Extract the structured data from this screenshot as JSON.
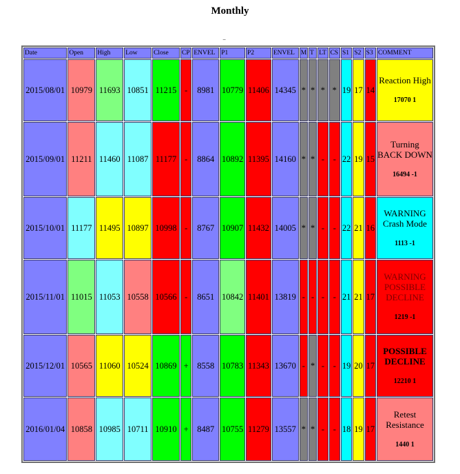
{
  "page": {
    "title": "Monthly"
  },
  "table": {
    "headers": [
      "Date",
      "Open",
      "High",
      "Low",
      "Close",
      "CP",
      "ENVEL",
      "P1",
      "P2",
      "ENVEL",
      "M",
      "T",
      "LT",
      "CS",
      "S1",
      "S2",
      "S3",
      "COMMENT"
    ],
    "rows": [
      {
        "cells": [
          "2015/08/01",
          "10979",
          "11693",
          "10851",
          "11215",
          "-",
          "8981",
          "10779",
          "11406",
          "14345",
          "*",
          "*",
          "*",
          "*",
          "19",
          "17",
          "14"
        ],
        "colors": [
          "#8080ff",
          "#ff8080",
          "#80ff80",
          "#80ffff",
          "#00ff00",
          "#ff0000",
          "#8080ff",
          "#00ff00",
          "#ff0000",
          "#8080ff",
          "#808080",
          "#808080",
          "#808080",
          "#808080",
          "#00ffff",
          "#ffff00",
          "#ff0000"
        ],
        "comment": {
          "text": "Reaction High",
          "sig": "17070 1",
          "bg": "#ffff00",
          "fg": "#000000",
          "bold": false
        }
      },
      {
        "cells": [
          "2015/09/01",
          "11211",
          "11460",
          "11087",
          "11177",
          "-",
          "8864",
          "10892",
          "11395",
          "14160",
          "*",
          "*",
          "-",
          "-",
          "22",
          "19",
          "15"
        ],
        "colors": [
          "#8080ff",
          "#ff8080",
          "#80ffff",
          "#80ffff",
          "#ff0000",
          "#ff0000",
          "#8080ff",
          "#00ff00",
          "#ff0000",
          "#8080ff",
          "#808080",
          "#808080",
          "#ff0000",
          "#ff0000",
          "#00ffff",
          "#ffff00",
          "#ff0000"
        ],
        "comment": {
          "text": "Turning BACK DOWN",
          "sig": "16494 -1",
          "bg": "#ff8080",
          "fg": "#000000",
          "bold": false
        }
      },
      {
        "cells": [
          "2015/10/01",
          "11177",
          "11495",
          "10897",
          "10998",
          "-",
          "8767",
          "10907",
          "11432",
          "14005",
          "*",
          "*",
          "-",
          "-",
          "22",
          "21",
          "16"
        ],
        "colors": [
          "#8080ff",
          "#80ffff",
          "#ffff00",
          "#ffff00",
          "#ff0000",
          "#ff0000",
          "#8080ff",
          "#00ff00",
          "#ff0000",
          "#8080ff",
          "#808080",
          "#808080",
          "#ff0000",
          "#ff0000",
          "#00ffff",
          "#ffff00",
          "#ff0000"
        ],
        "comment": {
          "text": "WARNING Crash Mode",
          "sig": "1113 -1",
          "bg": "#00ffff",
          "fg": "#000000",
          "bold": false
        }
      },
      {
        "cells": [
          "2015/11/01",
          "11015",
          "11053",
          "10558",
          "10566",
          "-",
          "8651",
          "10842",
          "11401",
          "13819",
          "-",
          "-",
          "-",
          "-",
          "21",
          "21",
          "17"
        ],
        "colors": [
          "#8080ff",
          "#80ff80",
          "#80ffff",
          "#ff8080",
          "#ff0000",
          "#ff0000",
          "#8080ff",
          "#80ff80",
          "#ff0000",
          "#8080ff",
          "#ff0000",
          "#ff0000",
          "#ff0000",
          "#ff0000",
          "#00ffff",
          "#ffff00",
          "#ff0000"
        ],
        "comment": {
          "text": "WARNING POSSIBLE DECLINE",
          "sig": "1219 -1",
          "bg": "#ff0000",
          "fg": "#800000",
          "bold": false
        }
      },
      {
        "cells": [
          "2015/12/01",
          "10565",
          "11060",
          "10524",
          "10869",
          "+",
          "8558",
          "10783",
          "11343",
          "13670",
          "-",
          "*",
          "-",
          "-",
          "19",
          "20",
          "17"
        ],
        "colors": [
          "#8080ff",
          "#ff8080",
          "#ffff00",
          "#ffff00",
          "#00ff00",
          "#00ff00",
          "#8080ff",
          "#00ff00",
          "#ff0000",
          "#8080ff",
          "#ff0000",
          "#808080",
          "#ff0000",
          "#ff0000",
          "#00ffff",
          "#ffff00",
          "#ff0000"
        ],
        "comment": {
          "text": "POSSIBLE DECLINE",
          "sig": "12210 1",
          "bg": "#ff0000",
          "fg": "#000000",
          "bold": true
        }
      },
      {
        "cells": [
          "2016/01/04",
          "10858",
          "10985",
          "10711",
          "10910",
          "+",
          "8487",
          "10755",
          "11279",
          "13557",
          "*",
          "*",
          "-",
          "-",
          "18",
          "19",
          "17"
        ],
        "colors": [
          "#8080ff",
          "#ff8080",
          "#80ffff",
          "#80ffff",
          "#00ff00",
          "#00ff00",
          "#8080ff",
          "#00ff00",
          "#ff0000",
          "#8080ff",
          "#808080",
          "#808080",
          "#ff0000",
          "#ff0000",
          "#00ffff",
          "#ffff00",
          "#ff0000"
        ],
        "comment": {
          "text": "Retest Resistance",
          "sig": "1440 1",
          "bg": "#ff8080",
          "fg": "#000000",
          "bold": false
        }
      }
    ]
  }
}
